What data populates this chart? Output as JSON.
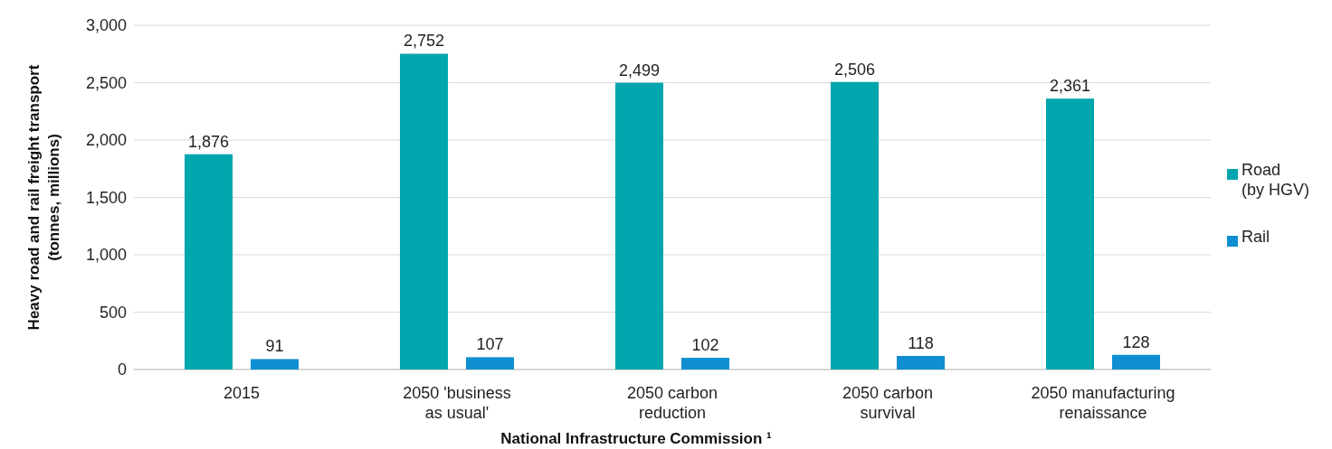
{
  "chart_data": {
    "type": "bar",
    "xlabel": "National Infrastructure Commission ¹",
    "ylabel": "Heavy road and rail freight transport (tonnes, millions)",
    "categories": [
      "2015",
      "2050 'business as usual'",
      "2050 carbon reduction",
      "2050 carbon survival",
      "2050 manufacturing renaissance"
    ],
    "series": [
      {
        "name": "Road (by HGV)",
        "color": "#00a6ad",
        "values": [
          1876,
          2752,
          2499,
          2506,
          2361
        ],
        "value_labels": [
          "1,876",
          "2,752",
          "2,499",
          "2,506",
          "2,361"
        ]
      },
      {
        "name": "Rail",
        "color": "#0f8fd1",
        "values": [
          91,
          107,
          102,
          118,
          128
        ],
        "value_labels": [
          "91",
          "107",
          "102",
          "118",
          "128"
        ]
      }
    ],
    "ylim": [
      0,
      3000
    ],
    "yticks": [
      0,
      500,
      {
        "value": 1000,
        "label": "1,000"
      },
      {
        "value": 1500,
        "label": "1,500"
      },
      {
        "value": 2000,
        "label": "2,000"
      },
      {
        "value": 2500,
        "label": "2,500"
      },
      {
        "value": 3000,
        "label": "3,000"
      }
    ],
    "grid": "y",
    "legend": "right"
  }
}
